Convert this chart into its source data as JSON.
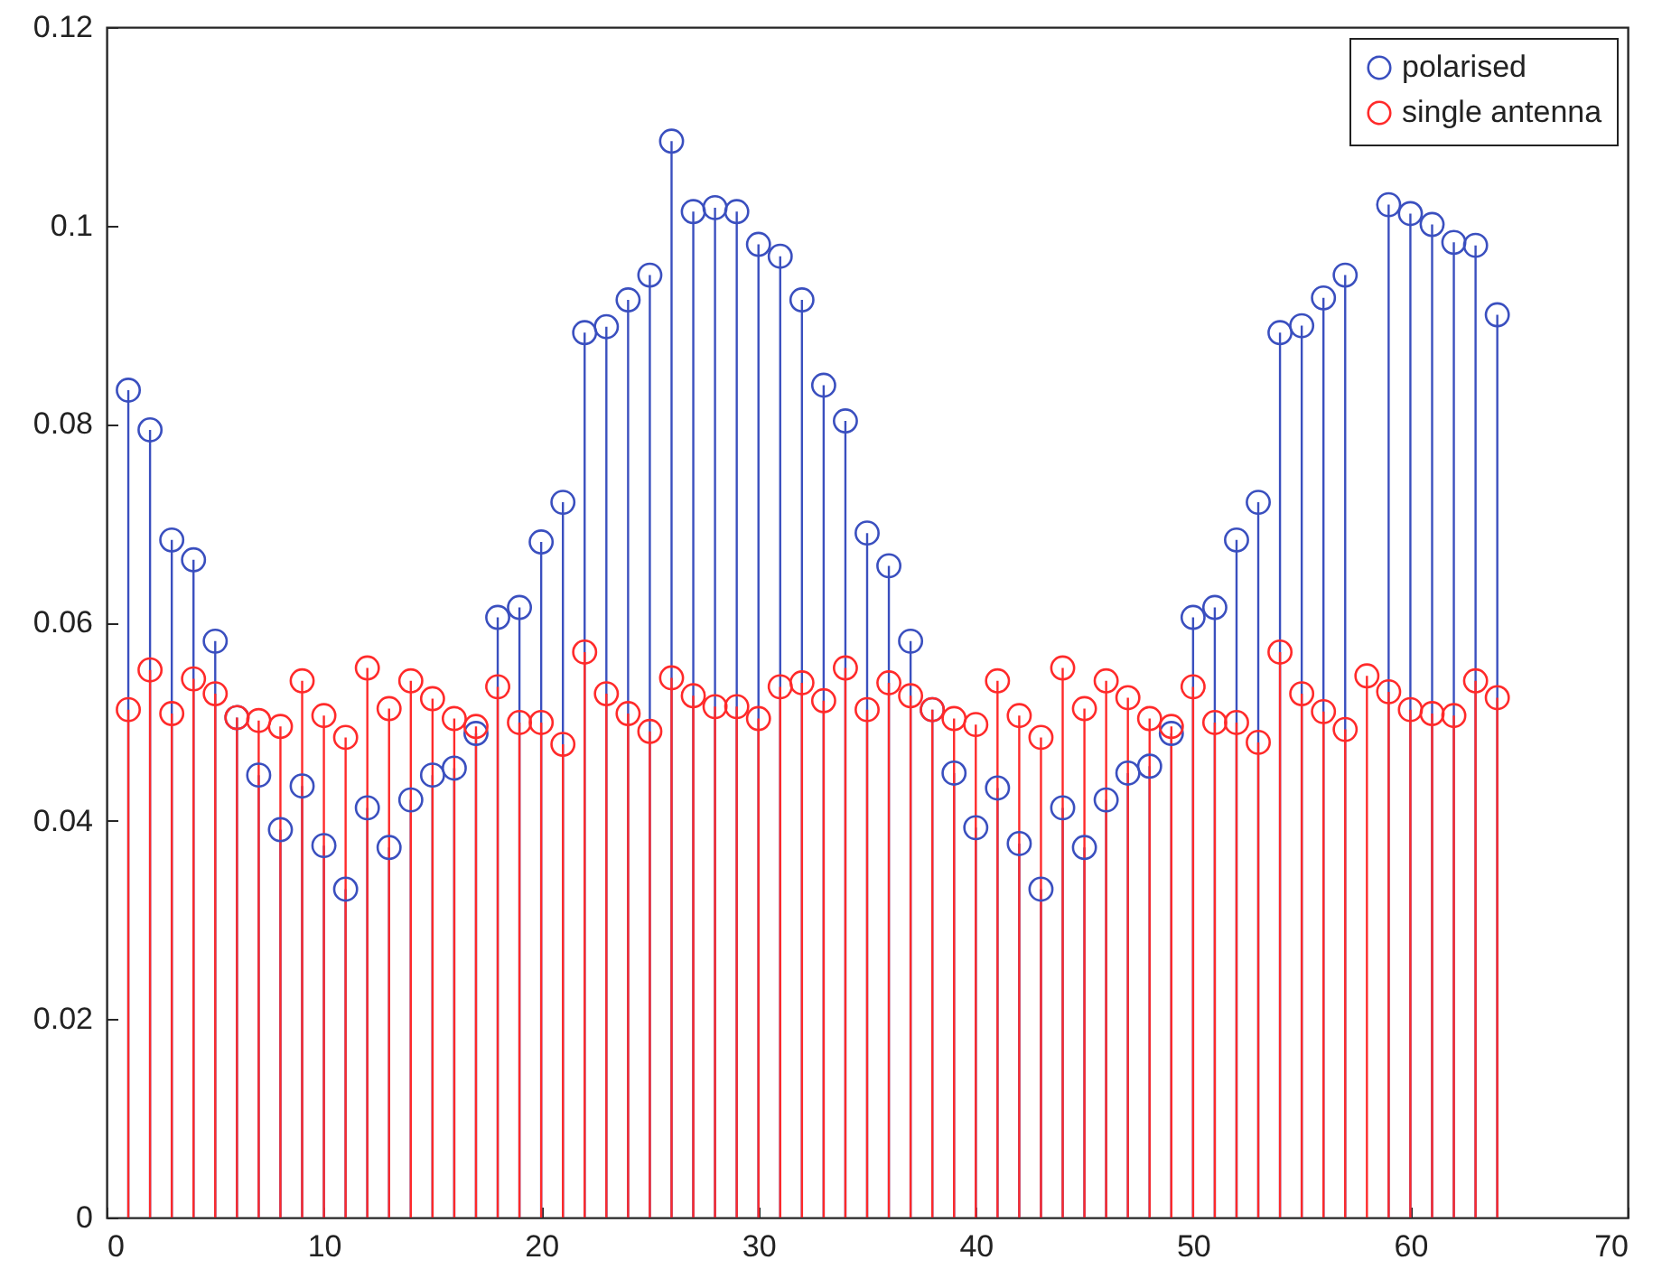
{
  "chart_data": {
    "type": "lollipop",
    "marker": "circle",
    "legend": "top right",
    "x": [
      1,
      2,
      3,
      4,
      5,
      6,
      7,
      8,
      9,
      10,
      11,
      12,
      13,
      14,
      15,
      16,
      17,
      18,
      19,
      20,
      21,
      22,
      23,
      24,
      25,
      26,
      27,
      28,
      29,
      30,
      31,
      32,
      33,
      34,
      35,
      36,
      37,
      38,
      39,
      40,
      41,
      42,
      43,
      44,
      45,
      46,
      47,
      48,
      49,
      50,
      51,
      52,
      53,
      54,
      55,
      56,
      57,
      58,
      59,
      60,
      61,
      62,
      63,
      64
    ],
    "xlim": [
      0,
      70
    ],
    "xticks": [
      0,
      10,
      20,
      30,
      40,
      50,
      60,
      70
    ],
    "ylim": [
      0,
      0.12
    ],
    "yticks": [
      0,
      0.02,
      0.04,
      0.06,
      0.08,
      0.1,
      0.12
    ],
    "series": [
      {
        "name": "polarised",
        "color": "#3a4fbf",
        "values": [
          0.0834,
          0.0794,
          0.0683,
          0.0663,
          0.0581,
          0.0504,
          0.0446,
          0.0391,
          0.0435,
          0.0375,
          0.0331,
          0.0413,
          0.0373,
          0.0421,
          0.0446,
          0.0453,
          0.0488,
          0.0605,
          0.0615,
          0.0681,
          0.0721,
          0.0892,
          0.0898,
          0.0925,
          0.095,
          0.1085,
          0.1014,
          0.1018,
          0.1014,
          0.0981,
          0.0969,
          0.0925,
          0.0839,
          0.0803,
          0.069,
          0.0657,
          0.0581,
          0.0512,
          0.0448,
          0.0393,
          0.0433,
          0.0377,
          0.0331,
          0.0413,
          0.0373,
          0.0421,
          0.0448,
          0.0455,
          0.0488,
          0.0605,
          0.0615,
          0.0683,
          0.0721,
          0.0892,
          0.0899,
          0.0927,
          0.095,
          null,
          0.1021,
          0.1012,
          0.1001,
          0.0983,
          0.098,
          0.091
        ]
      },
      {
        "name": "single antenna",
        "color": "#ff2a2a",
        "values": [
          0.0512,
          0.0552,
          0.0508,
          0.0543,
          0.0528,
          0.0504,
          0.0501,
          0.0495,
          0.0541,
          0.0506,
          0.0484,
          0.0554,
          0.0513,
          0.0541,
          0.0523,
          0.0503,
          0.0495,
          0.0535,
          0.0499,
          0.0499,
          0.0477,
          0.057,
          0.0528,
          0.0508,
          0.049,
          0.0544,
          0.0526,
          0.0515,
          0.0515,
          0.0503,
          0.0535,
          0.0539,
          0.0521,
          0.0554,
          0.0512,
          0.0539,
          0.0526,
          0.0512,
          0.0503,
          0.0497,
          0.0541,
          0.0506,
          0.0484,
          0.0554,
          0.0513,
          0.0541,
          0.0524,
          0.0503,
          0.0495,
          0.0535,
          0.0499,
          0.0499,
          0.0479,
          0.057,
          0.0528,
          0.051,
          0.0492,
          0.0546,
          0.053,
          0.0512,
          0.0508,
          0.0506,
          0.0541,
          0.0524
        ]
      }
    ]
  }
}
